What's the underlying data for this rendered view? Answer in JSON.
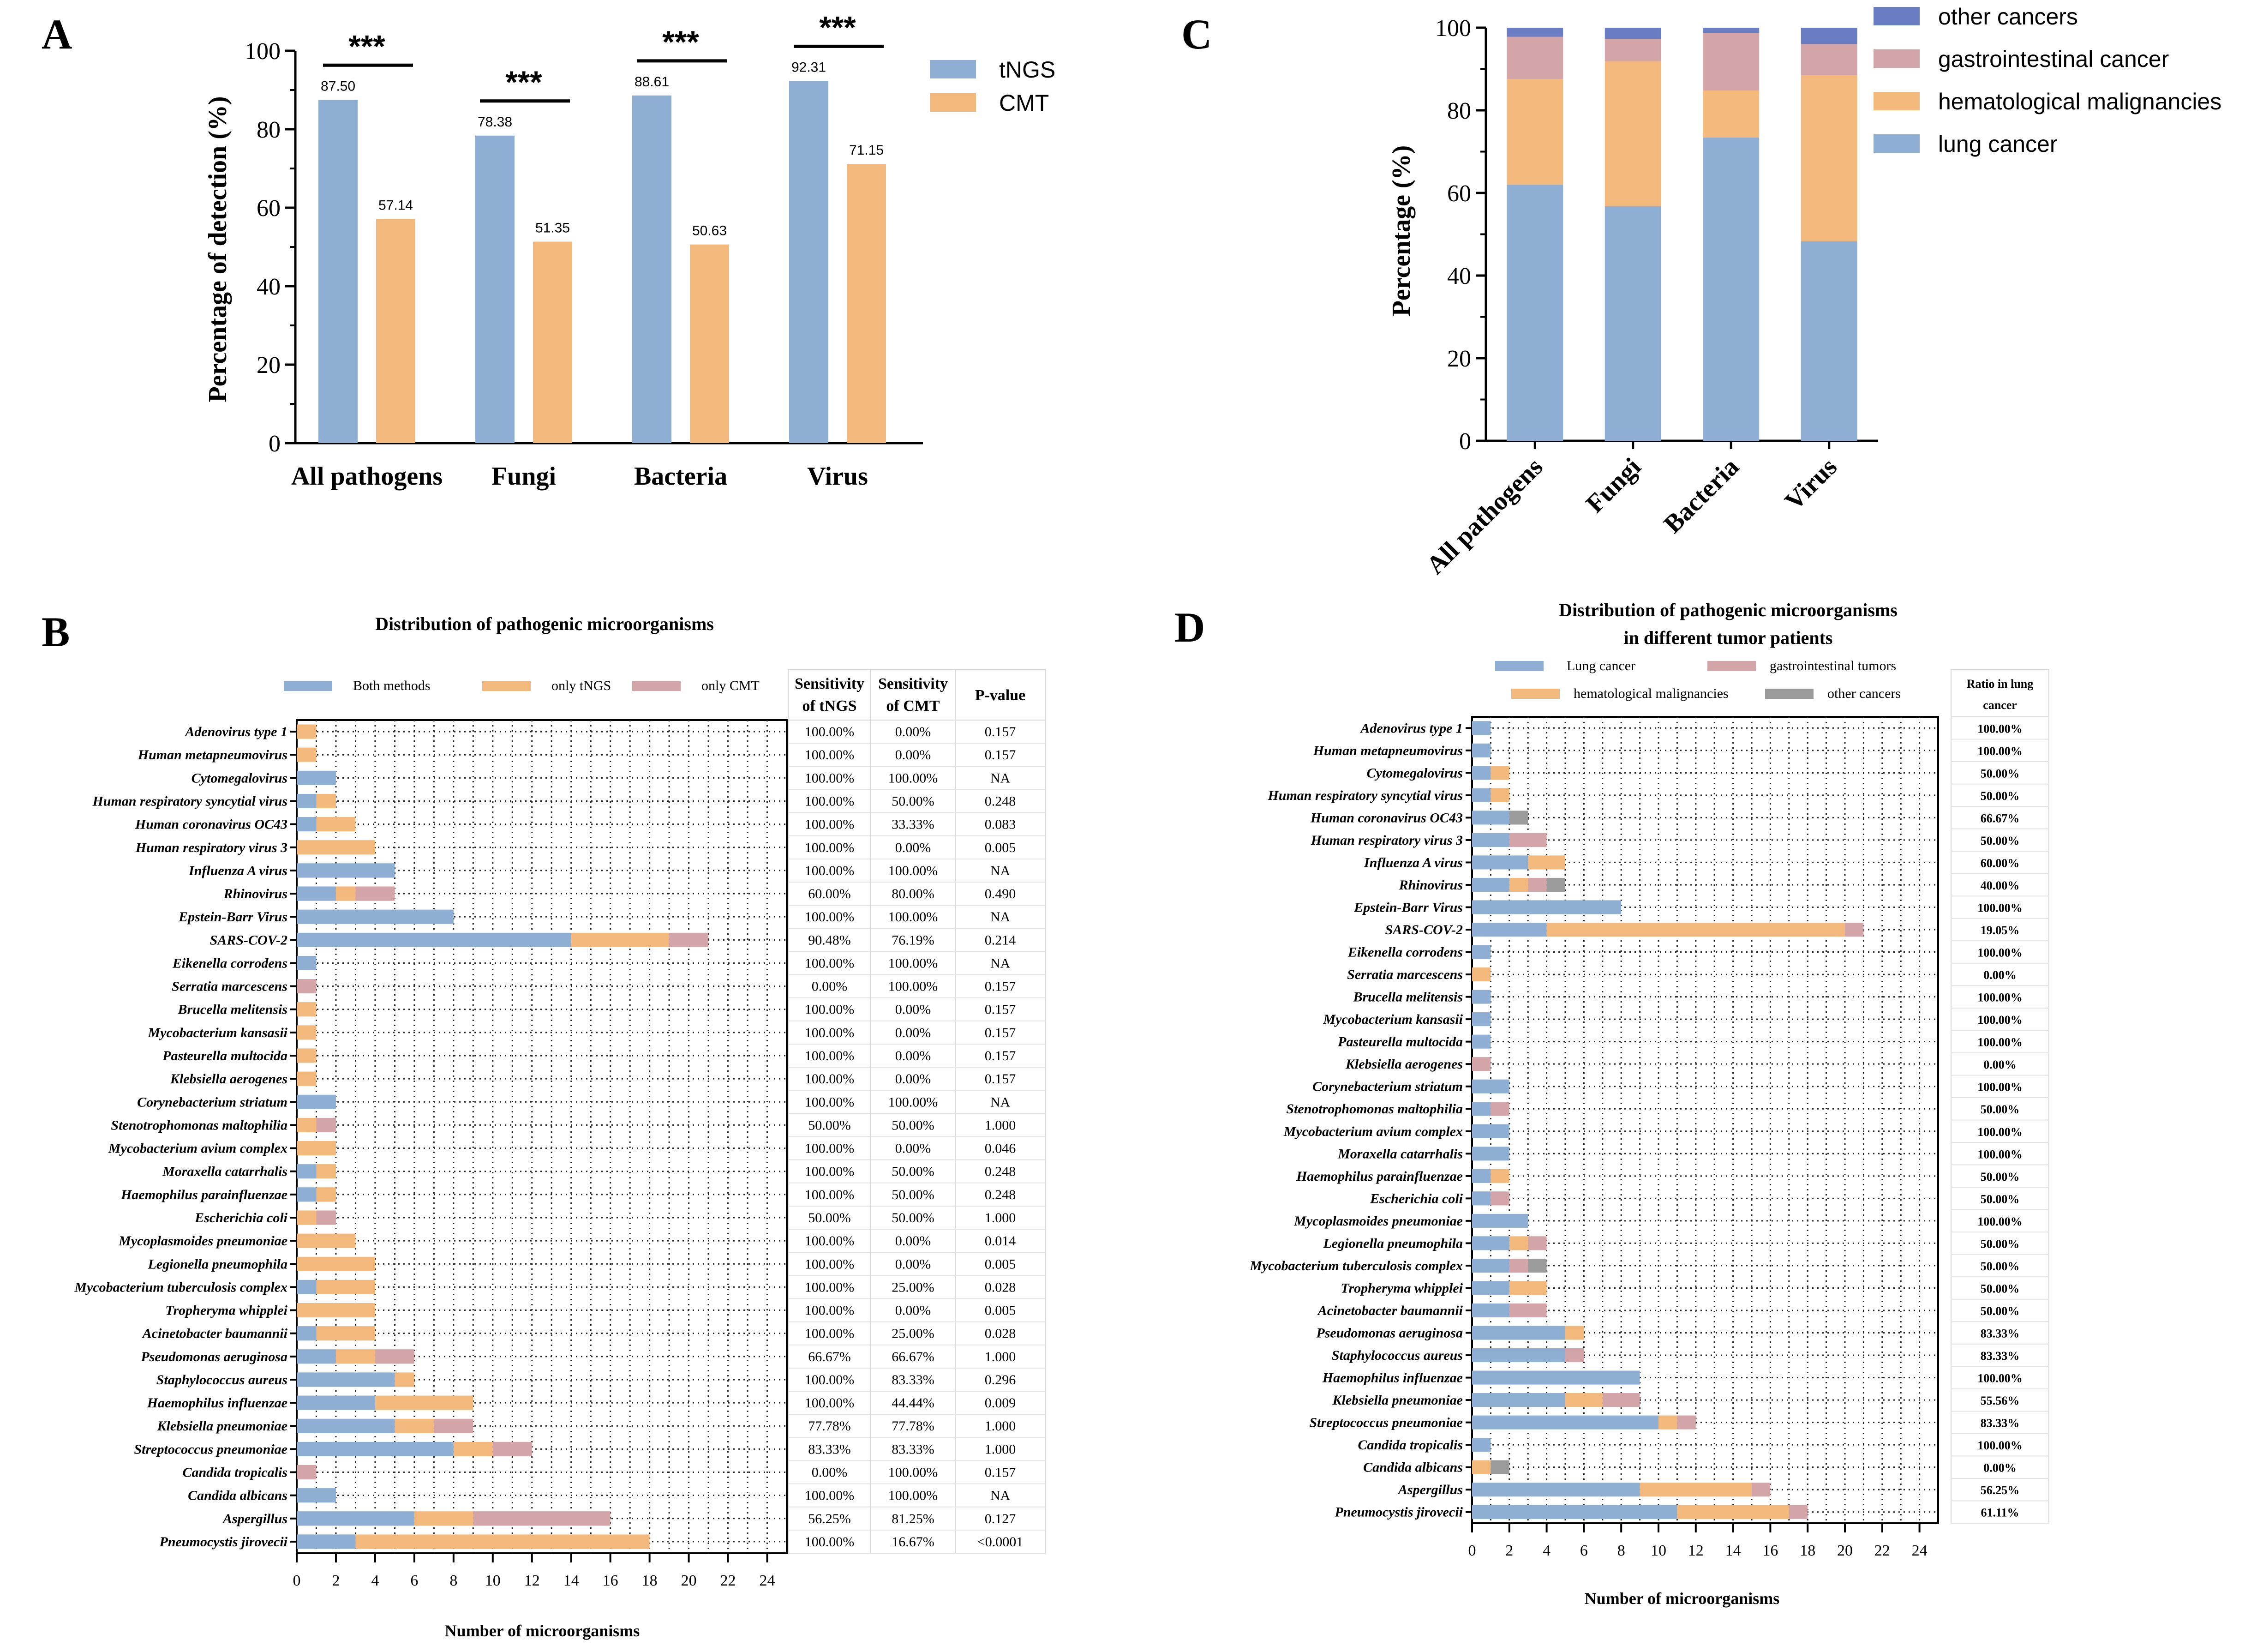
{
  "colors": {
    "tngs": "#8eaed4",
    "cmt": "#f2b87c",
    "both": "#8eaed4",
    "only_tngs": "#f2b87c",
    "only_cmt": "#d4a5a8",
    "lung": "#8eaed4",
    "gastro": "#d4a5a8",
    "hema": "#f2b87c",
    "other": "#6a7dc2",
    "other_d": "#9b9b9b"
  },
  "chart_data": [
    {
      "panel": "A",
      "type": "bar",
      "categories": [
        "All pathogens",
        "Fungi",
        "Bacteria",
        "Virus"
      ],
      "series": [
        {
          "name": "tNGS",
          "values": [
            87.5,
            78.38,
            88.61,
            92.31
          ],
          "labels": [
            "87.50",
            "78.38",
            "88.61",
            "92.31"
          ]
        },
        {
          "name": "CMT",
          "values": [
            57.14,
            51.35,
            50.63,
            71.15
          ],
          "labels": [
            "57.14",
            "51.35",
            "50.63",
            "71.15"
          ]
        }
      ],
      "significance": [
        "***",
        "***",
        "***",
        "***"
      ],
      "ylabel": "Percentage of detection (%)",
      "ylim": [
        0,
        100
      ],
      "yticks": [
        0,
        20,
        40,
        60,
        80,
        100
      ],
      "ytick_labels": [
        "0",
        "20",
        "40",
        "60",
        "80",
        "100"
      ],
      "legend_position": "top-right"
    },
    {
      "panel": "C",
      "type": "bar",
      "stacked": true,
      "categories": [
        "All pathogens",
        "Fungi",
        "Bacteria",
        "Virus"
      ],
      "series": [
        {
          "name": "lung cancer",
          "values": [
            62,
            56.8,
            73.4,
            48.3
          ]
        },
        {
          "name": "hematological malignancies",
          "values": [
            25.6,
            35.1,
            11.4,
            40.2
          ]
        },
        {
          "name": "gastrointestinal cancer",
          "values": [
            10.2,
            5.4,
            13.9,
            7.5
          ]
        },
        {
          "name": "other cancers",
          "values": [
            2.2,
            2.7,
            1.3,
            4.0
          ]
        }
      ],
      "legend_order": [
        "other cancers",
        "gastrointestinal cancer",
        "hematological malignancies",
        "lung cancer"
      ],
      "ylabel": "Percentage (%)",
      "ylim": [
        0,
        100
      ],
      "yticks": [
        0,
        20,
        40,
        60,
        80,
        100
      ],
      "ytick_labels": [
        "0",
        "20",
        "40",
        "60",
        "80",
        "100"
      ],
      "legend_position": "top-right"
    },
    {
      "panel": "B",
      "type": "bar",
      "orientation": "horizontal",
      "stacked": true,
      "title": "Distribution of pathogenic microorganisms",
      "xlabel": "Number of  microorganisms",
      "xlim": [
        0,
        25
      ],
      "xticks": [
        0,
        2,
        4,
        6,
        8,
        10,
        12,
        14,
        16,
        18,
        20,
        22,
        24
      ],
      "xtick_labels": [
        "0",
        "2",
        "4",
        "6",
        "8",
        "10",
        "12",
        "14",
        "16",
        "18",
        "20",
        "22",
        "24"
      ],
      "series_names": [
        "Both methods",
        "only tNGS",
        "only CMT"
      ],
      "table_headers": [
        [
          "Sensitivity",
          "of tNGS"
        ],
        [
          "Sensitivity",
          "of CMT"
        ],
        [
          "P-value"
        ]
      ],
      "rows": [
        {
          "name": "Adenovirus type 1",
          "values": [
            0,
            1,
            0
          ],
          "sens_tngs": "100.00%",
          "sens_cmt": "0.00%",
          "p": "0.157"
        },
        {
          "name": "Human metapneumovirus",
          "values": [
            0,
            1,
            0
          ],
          "sens_tngs": "100.00%",
          "sens_cmt": "0.00%",
          "p": "0.157"
        },
        {
          "name": "Cytomegalovirus",
          "values": [
            2,
            0,
            0
          ],
          "sens_tngs": "100.00%",
          "sens_cmt": "100.00%",
          "p": "NA"
        },
        {
          "name": "Human respiratory syncytial virus",
          "values": [
            1,
            1,
            0
          ],
          "sens_tngs": "100.00%",
          "sens_cmt": "50.00%",
          "p": "0.248"
        },
        {
          "name": "Human coronavirus OC43",
          "values": [
            1,
            2,
            0
          ],
          "sens_tngs": "100.00%",
          "sens_cmt": "33.33%",
          "p": "0.083"
        },
        {
          "name": "Human respiratory virus 3",
          "values": [
            0,
            4,
            0
          ],
          "sens_tngs": "100.00%",
          "sens_cmt": "0.00%",
          "p": "0.005"
        },
        {
          "name": "Influenza A virus",
          "values": [
            5,
            0,
            0
          ],
          "sens_tngs": "100.00%",
          "sens_cmt": "100.00%",
          "p": "NA"
        },
        {
          "name": "Rhinovirus",
          "values": [
            2,
            1,
            2
          ],
          "sens_tngs": "60.00%",
          "sens_cmt": "80.00%",
          "p": "0.490"
        },
        {
          "name": "Epstein-Barr Virus",
          "values": [
            8,
            0,
            0
          ],
          "sens_tngs": "100.00%",
          "sens_cmt": "100.00%",
          "p": "NA"
        },
        {
          "name": "SARS-COV-2",
          "values": [
            14,
            5,
            2
          ],
          "sens_tngs": "90.48%",
          "sens_cmt": "76.19%",
          "p": "0.214"
        },
        {
          "name": "Eikenella corrodens",
          "values": [
            1,
            0,
            0
          ],
          "sens_tngs": "100.00%",
          "sens_cmt": "100.00%",
          "p": "NA"
        },
        {
          "name": "Serratia marcescens",
          "values": [
            0,
            0,
            1
          ],
          "sens_tngs": "0.00%",
          "sens_cmt": "100.00%",
          "p": "0.157"
        },
        {
          "name": "Brucella melitensis",
          "values": [
            0,
            1,
            0
          ],
          "sens_tngs": "100.00%",
          "sens_cmt": "0.00%",
          "p": "0.157"
        },
        {
          "name": "Mycobacterium kansasii",
          "values": [
            0,
            1,
            0
          ],
          "sens_tngs": "100.00%",
          "sens_cmt": "0.00%",
          "p": "0.157"
        },
        {
          "name": "Pasteurella multocida",
          "values": [
            0,
            1,
            0
          ],
          "sens_tngs": "100.00%",
          "sens_cmt": "0.00%",
          "p": "0.157"
        },
        {
          "name": "Klebsiella aerogenes",
          "values": [
            0,
            1,
            0
          ],
          "sens_tngs": "100.00%",
          "sens_cmt": "0.00%",
          "p": "0.157"
        },
        {
          "name": "Corynebacterium striatum",
          "values": [
            2,
            0,
            0
          ],
          "sens_tngs": "100.00%",
          "sens_cmt": "100.00%",
          "p": "NA"
        },
        {
          "name": "Stenotrophomonas maltophilia",
          "values": [
            0,
            1,
            1
          ],
          "sens_tngs": "50.00%",
          "sens_cmt": "50.00%",
          "p": "1.000"
        },
        {
          "name": "Mycobacterium avium complex",
          "values": [
            0,
            2,
            0
          ],
          "sens_tngs": "100.00%",
          "sens_cmt": "0.00%",
          "p": "0.046"
        },
        {
          "name": "Moraxella catarrhalis",
          "values": [
            1,
            1,
            0
          ],
          "sens_tngs": "100.00%",
          "sens_cmt": "50.00%",
          "p": "0.248"
        },
        {
          "name": "Haemophilus parainfluenzae",
          "values": [
            1,
            1,
            0
          ],
          "sens_tngs": "100.00%",
          "sens_cmt": "50.00%",
          "p": "0.248"
        },
        {
          "name": "Escherichia coli",
          "values": [
            0,
            1,
            1
          ],
          "sens_tngs": "50.00%",
          "sens_cmt": "50.00%",
          "p": "1.000"
        },
        {
          "name": "Mycoplasmoides pneumoniae",
          "values": [
            0,
            3,
            0
          ],
          "sens_tngs": "100.00%",
          "sens_cmt": "0.00%",
          "p": "0.014"
        },
        {
          "name": "Legionella pneumophila",
          "values": [
            0,
            4,
            0
          ],
          "sens_tngs": "100.00%",
          "sens_cmt": "0.00%",
          "p": "0.005"
        },
        {
          "name": "Mycobacterium tuberculosis complex",
          "values": [
            1,
            3,
            0
          ],
          "sens_tngs": "100.00%",
          "sens_cmt": "25.00%",
          "p": "0.028"
        },
        {
          "name": "Tropheryma whipplei",
          "values": [
            0,
            4,
            0
          ],
          "sens_tngs": "100.00%",
          "sens_cmt": "0.00%",
          "p": "0.005"
        },
        {
          "name": "Acinetobacter baumannii",
          "values": [
            1,
            3,
            0
          ],
          "sens_tngs": "100.00%",
          "sens_cmt": "25.00%",
          "p": "0.028"
        },
        {
          "name": "Pseudomonas aeruginosa",
          "values": [
            2,
            2,
            2
          ],
          "sens_tngs": "66.67%",
          "sens_cmt": "66.67%",
          "p": "1.000"
        },
        {
          "name": "Staphylococcus aureus",
          "values": [
            5,
            1,
            0
          ],
          "sens_tngs": "100.00%",
          "sens_cmt": "83.33%",
          "p": "0.296"
        },
        {
          "name": "Haemophilus influenzae",
          "values": [
            4,
            5,
            0
          ],
          "sens_tngs": "100.00%",
          "sens_cmt": "44.44%",
          "p": "0.009"
        },
        {
          "name": "Klebsiella pneumoniae",
          "values": [
            5,
            2,
            2
          ],
          "sens_tngs": "77.78%",
          "sens_cmt": "77.78%",
          "p": "1.000"
        },
        {
          "name": "Streptococcus pneumoniae",
          "values": [
            8,
            2,
            2
          ],
          "sens_tngs": "83.33%",
          "sens_cmt": "83.33%",
          "p": "1.000"
        },
        {
          "name": "Candida tropicalis",
          "values": [
            0,
            0,
            1
          ],
          "sens_tngs": "0.00%",
          "sens_cmt": "100.00%",
          "p": "0.157"
        },
        {
          "name": "Candida albicans",
          "values": [
            2,
            0,
            0
          ],
          "sens_tngs": "100.00%",
          "sens_cmt": "100.00%",
          "p": "NA"
        },
        {
          "name": "Aspergillus",
          "values": [
            6,
            3,
            7
          ],
          "sens_tngs": "56.25%",
          "sens_cmt": "81.25%",
          "p": "0.127"
        },
        {
          "name": "Pneumocystis jirovecii",
          "values": [
            3,
            15,
            0
          ],
          "sens_tngs": "100.00%",
          "sens_cmt": "16.67%",
          "p": "<0.0001"
        }
      ]
    },
    {
      "panel": "D",
      "type": "bar",
      "orientation": "horizontal",
      "stacked": true,
      "title": [
        "Distribution of pathogenic microorganisms",
        "in different tumor patients"
      ],
      "xlabel": "Number of  microorganisms",
      "xlim": [
        0,
        25
      ],
      "xticks": [
        0,
        2,
        4,
        6,
        8,
        10,
        12,
        14,
        16,
        18,
        20,
        22,
        24
      ],
      "xtick_labels": [
        "0",
        "2",
        "4",
        "6",
        "8",
        "10",
        "12",
        "14",
        "16",
        "18",
        "20",
        "22",
        "24"
      ],
      "series_names": [
        "Lung cancer",
        "hematological malignancies",
        "gastrointestinal tumors",
        "other cancers"
      ],
      "table_headers": [
        [
          "Ratio in lung",
          "cancer"
        ]
      ],
      "rows": [
        {
          "name": "Adenovirus type 1",
          "values": [
            1,
            0,
            0,
            0
          ],
          "ratio": "100.00%"
        },
        {
          "name": "Human metapneumovirus",
          "values": [
            1,
            0,
            0,
            0
          ],
          "ratio": "100.00%"
        },
        {
          "name": "Cytomegalovirus",
          "values": [
            1,
            1,
            0,
            0
          ],
          "ratio": "50.00%"
        },
        {
          "name": "Human respiratory syncytial virus",
          "values": [
            1,
            1,
            0,
            0
          ],
          "ratio": "50.00%"
        },
        {
          "name": "Human coronavirus OC43",
          "values": [
            2,
            0,
            0,
            1
          ],
          "ratio": "66.67%"
        },
        {
          "name": "Human respiratory virus 3",
          "values": [
            2,
            0,
            2,
            0
          ],
          "ratio": "50.00%"
        },
        {
          "name": "Influenza A virus",
          "values": [
            3,
            2,
            0,
            0
          ],
          "ratio": "60.00%"
        },
        {
          "name": "Rhinovirus",
          "values": [
            2,
            1,
            1,
            1
          ],
          "ratio": "40.00%"
        },
        {
          "name": "Epstein-Barr Virus",
          "values": [
            8,
            0,
            0,
            0
          ],
          "ratio": "100.00%"
        },
        {
          "name": "SARS-COV-2",
          "values": [
            4,
            16,
            1,
            0
          ],
          "ratio": "19.05%"
        },
        {
          "name": "Eikenella corrodens",
          "values": [
            1,
            0,
            0,
            0
          ],
          "ratio": "100.00%"
        },
        {
          "name": "Serratia marcescens",
          "values": [
            0,
            1,
            0,
            0
          ],
          "ratio": "0.00%"
        },
        {
          "name": "Brucella melitensis",
          "values": [
            1,
            0,
            0,
            0
          ],
          "ratio": "100.00%"
        },
        {
          "name": "Mycobacterium kansasii",
          "values": [
            1,
            0,
            0,
            0
          ],
          "ratio": "100.00%"
        },
        {
          "name": "Pasteurella multocida",
          "values": [
            1,
            0,
            0,
            0
          ],
          "ratio": "100.00%"
        },
        {
          "name": "Klebsiella aerogenes",
          "values": [
            0,
            0,
            1,
            0
          ],
          "ratio": "0.00%"
        },
        {
          "name": "Corynebacterium striatum",
          "values": [
            2,
            0,
            0,
            0
          ],
          "ratio": "100.00%"
        },
        {
          "name": "Stenotrophomonas maltophilia",
          "values": [
            1,
            0,
            1,
            0
          ],
          "ratio": "50.00%"
        },
        {
          "name": "Mycobacterium avium complex",
          "values": [
            2,
            0,
            0,
            0
          ],
          "ratio": "100.00%"
        },
        {
          "name": "Moraxella catarrhalis",
          "values": [
            2,
            0,
            0,
            0
          ],
          "ratio": "100.00%"
        },
        {
          "name": "Haemophilus parainfluenzae",
          "values": [
            1,
            1,
            0,
            0
          ],
          "ratio": "50.00%"
        },
        {
          "name": "Escherichia coli",
          "values": [
            1,
            0,
            1,
            0
          ],
          "ratio": "50.00%"
        },
        {
          "name": "Mycoplasmoides pneumoniae",
          "values": [
            3,
            0,
            0,
            0
          ],
          "ratio": "100.00%"
        },
        {
          "name": "Legionella pneumophila",
          "values": [
            2,
            1,
            1,
            0
          ],
          "ratio": "50.00%"
        },
        {
          "name": "Mycobacterium tuberculosis complex",
          "values": [
            2,
            0,
            1,
            1
          ],
          "ratio": "50.00%"
        },
        {
          "name": "Tropheryma whipplei",
          "values": [
            2,
            2,
            0,
            0
          ],
          "ratio": "50.00%"
        },
        {
          "name": "Acinetobacter baumannii",
          "values": [
            2,
            0,
            2,
            0
          ],
          "ratio": "50.00%"
        },
        {
          "name": "Pseudomonas aeruginosa",
          "values": [
            5,
            1,
            0,
            0
          ],
          "ratio": "83.33%"
        },
        {
          "name": "Staphylococcus aureus",
          "values": [
            5,
            0,
            1,
            0
          ],
          "ratio": "83.33%"
        },
        {
          "name": "Haemophilus influenzae",
          "values": [
            9,
            0,
            0,
            0
          ],
          "ratio": "100.00%"
        },
        {
          "name": "Klebsiella pneumoniae",
          "values": [
            5,
            2,
            2,
            0
          ],
          "ratio": "55.56%"
        },
        {
          "name": "Streptococcus pneumoniae",
          "values": [
            10,
            1,
            1,
            0
          ],
          "ratio": "83.33%"
        },
        {
          "name": "Candida tropicalis",
          "values": [
            1,
            0,
            0,
            0
          ],
          "ratio": "100.00%"
        },
        {
          "name": "Candida albicans",
          "values": [
            0,
            1,
            0,
            1
          ],
          "ratio": "0.00%"
        },
        {
          "name": "Aspergillus",
          "values": [
            9,
            6,
            1,
            0
          ],
          "ratio": "56.25%"
        },
        {
          "name": "Pneumocystis jirovecii",
          "values": [
            11,
            6,
            1,
            0
          ],
          "ratio": "61.11%"
        }
      ]
    }
  ]
}
